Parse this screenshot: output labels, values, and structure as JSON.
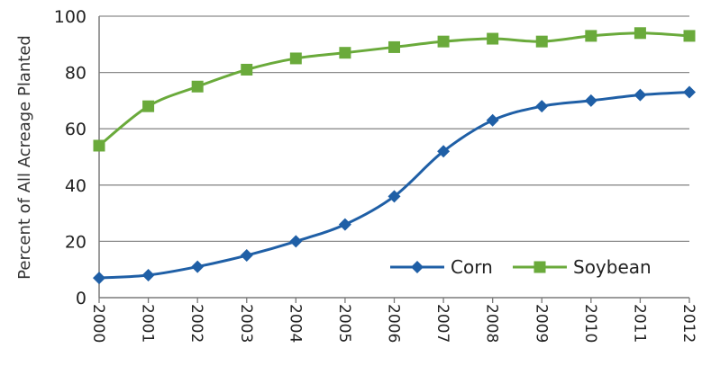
{
  "chart_data": {
    "type": "line",
    "ylabel": "Percent of All Acreage Planted",
    "xlabel": "",
    "x": [
      "2000",
      "2001",
      "2002",
      "2003",
      "2004",
      "2005",
      "2006",
      "2007",
      "2008",
      "2009",
      "2010",
      "2011",
      "2012"
    ],
    "ylim": [
      0,
      100
    ],
    "yticks": [
      0,
      20,
      40,
      60,
      80,
      100
    ],
    "grid": "horizontal",
    "legend_position": "bottom-right",
    "series": [
      {
        "name": "Corn",
        "color": "#1f5fa6",
        "marker": "diamond",
        "values": [
          7,
          8,
          11,
          15,
          20,
          26,
          36,
          52,
          63,
          68,
          70,
          72,
          73
        ]
      },
      {
        "name": "Soybean",
        "color": "#6aaa3b",
        "marker": "square",
        "values": [
          54,
          68,
          75,
          81,
          85,
          87,
          89,
          91,
          92,
          91,
          93,
          94,
          93
        ]
      }
    ]
  }
}
